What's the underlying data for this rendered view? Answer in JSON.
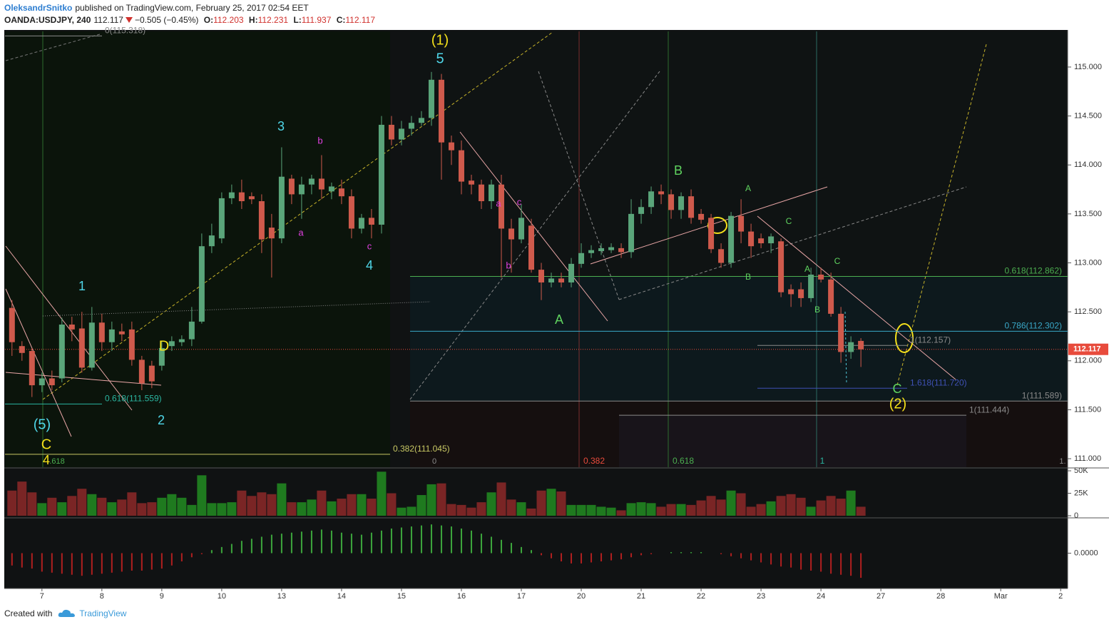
{
  "header": {
    "author": "OleksandrSnitko",
    "published": "published on TradingView.com, February 25, 2017 02:54 EET",
    "symbol": "OANDA:USDJPY, 240",
    "last": "112.117",
    "change": "−0.505 (−0.45%)",
    "ohlc": [
      {
        "key": "O:",
        "value": "112.203"
      },
      {
        "key": "H:",
        "value": "112.231"
      },
      {
        "key": "L:",
        "value": "111.937"
      },
      {
        "key": "C:",
        "value": "112.117"
      }
    ]
  },
  "footer": {
    "created": "Created with",
    "brand": "TradingView"
  },
  "chart_data": [
    {
      "type": "candlestick",
      "up_color": "#5aa57a",
      "down_color": "#cf5a4c",
      "xlim": [
        -0.7,
        105.7
      ],
      "ylim": [
        110.913,
        115.364
      ],
      "yticks": [
        {
          "value": 111,
          "label": "111.000"
        },
        {
          "value": 111.5,
          "label": "111.500"
        },
        {
          "value": 112,
          "label": "112.000"
        },
        {
          "value": 112.5,
          "label": "112.500"
        },
        {
          "value": 113,
          "label": "113.000"
        },
        {
          "value": 113.5,
          "label": "113.500"
        },
        {
          "value": 114,
          "label": "114.000"
        },
        {
          "value": 114.5,
          "label": "114.500"
        },
        {
          "value": 115,
          "label": "115.000"
        }
      ],
      "last_price": 112.117,
      "last_color": "#e84b3c",
      "open": [
        112.54,
        112.15,
        112.1,
        111.75,
        111.82,
        111.82,
        112.37,
        112.33,
        111.93,
        112.39,
        112.19,
        112.3,
        112.32,
        112.01,
        111.95,
        111.95,
        112.15,
        112.19,
        112.22,
        112.4,
        113.17,
        113.25,
        113.66,
        113.72,
        113.68,
        113.63,
        113.36,
        113.25,
        113.86,
        113.7,
        113.8,
        113.86,
        113.73,
        113.76,
        113.68,
        113.35,
        113.46,
        113.39,
        114.41,
        114.26,
        114.37,
        114.43,
        114.48,
        114.87,
        114.23,
        114.15,
        113.84,
        113.8,
        113.63,
        113.8,
        113.35,
        113.24,
        113.38,
        112.93,
        112.8,
        112.84,
        112.8,
        112.99,
        113.1,
        113.12,
        113.13,
        113.15,
        113.11,
        113.5,
        113.57,
        113.73,
        113.7,
        113.54,
        113.68,
        113.5,
        113.46,
        113.14,
        113.0,
        113.48,
        113.32,
        113.25,
        113.2,
        113.22,
        112.73,
        112.73,
        112.64,
        112.88,
        112.83,
        112.48,
        112.09,
        112.203
      ],
      "high": [
        112.62,
        112.2,
        112.13,
        111.88,
        111.9,
        112.44,
        112.45,
        112.5,
        112.55,
        112.48,
        112.4,
        112.38,
        112.4,
        112.05,
        112.0,
        112.2,
        112.25,
        112.26,
        112.55,
        113.3,
        113.4,
        113.72,
        113.8,
        113.85,
        113.72,
        113.7,
        113.5,
        114.18,
        113.9,
        113.88,
        113.9,
        114.1,
        113.82,
        113.85,
        113.75,
        113.5,
        113.55,
        114.5,
        114.5,
        114.45,
        114.5,
        114.55,
        114.95,
        114.93,
        114.3,
        114.25,
        113.9,
        113.85,
        113.85,
        113.9,
        113.45,
        113.6,
        113.45,
        113.0,
        112.9,
        112.9,
        113.05,
        113.2,
        113.18,
        113.2,
        113.2,
        113.2,
        113.65,
        113.65,
        113.78,
        113.8,
        113.75,
        113.72,
        113.75,
        113.55,
        113.5,
        113.2,
        113.52,
        113.65,
        113.4,
        113.3,
        113.3,
        113.25,
        112.78,
        112.8,
        112.95,
        112.95,
        112.9,
        112.55,
        112.25,
        112.231
      ],
      "low": [
        112.05,
        112.0,
        111.63,
        111.68,
        111.7,
        111.78,
        112.2,
        111.88,
        111.9,
        112.1,
        112.1,
        112.2,
        111.95,
        111.7,
        111.72,
        111.9,
        112.1,
        112.15,
        112.15,
        112.38,
        113.1,
        113.2,
        113.6,
        113.55,
        113.6,
        113.1,
        112.85,
        113.2,
        113.6,
        113.45,
        113.7,
        113.65,
        113.65,
        113.6,
        113.25,
        113.3,
        113.25,
        113.3,
        114.2,
        114.2,
        114.3,
        114.4,
        114.4,
        113.85,
        114.0,
        113.7,
        113.7,
        113.55,
        113.55,
        112.85,
        112.9,
        113.2,
        112.9,
        112.62,
        112.75,
        112.75,
        112.75,
        112.95,
        113.05,
        113.08,
        113.1,
        113.05,
        113.05,
        113.4,
        113.5,
        113.6,
        113.45,
        113.45,
        113.4,
        113.4,
        113.1,
        112.95,
        112.95,
        113.2,
        113.05,
        113.15,
        113.1,
        112.65,
        112.55,
        112.55,
        112.6,
        112.8,
        112.45,
        111.98,
        112.02,
        111.937
      ],
      "close": [
        112.19,
        112.08,
        111.75,
        111.82,
        111.75,
        112.37,
        112.32,
        111.93,
        112.39,
        112.19,
        112.32,
        112.27,
        112.01,
        111.77,
        111.79,
        112.13,
        112.2,
        112.22,
        112.4,
        113.17,
        113.28,
        113.66,
        113.72,
        113.63,
        113.65,
        113.24,
        113.25,
        113.88,
        113.7,
        113.8,
        113.86,
        113.75,
        113.78,
        113.68,
        113.35,
        113.46,
        113.39,
        114.41,
        114.26,
        114.37,
        114.43,
        114.48,
        114.87,
        114.23,
        114.15,
        113.83,
        113.8,
        113.63,
        113.8,
        113.35,
        113.24,
        113.46,
        112.93,
        112.8,
        112.84,
        112.8,
        112.99,
        113.1,
        113.13,
        113.15,
        113.16,
        113.11,
        113.5,
        113.57,
        113.73,
        113.7,
        113.54,
        113.68,
        113.46,
        113.44,
        113.14,
        113.0,
        113.48,
        113.32,
        113.17,
        113.2,
        113.27,
        112.7,
        112.68,
        112.64,
        112.88,
        112.83,
        112.48,
        112.09,
        112.19,
        112.117
      ],
      "levels": [
        {
          "label": "0.618(112.862)",
          "value": 112.862,
          "color": "#4caf50"
        },
        {
          "label": "0.786(112.302)",
          "value": 112.302,
          "color": "#3aa8c8"
        },
        {
          "label": "1.618(111.720)",
          "value": 111.72,
          "color": "#3f51b5"
        },
        {
          "label": "1(111.589)",
          "value": 111.589,
          "color": "#8a8a8a"
        },
        {
          "label": "1(111.444)",
          "value": 111.444,
          "color": "#8a8a8a"
        },
        {
          "label": "1(112.157)",
          "value": 112.157,
          "color": "#8a8a8a"
        },
        {
          "label": "0.382(111.045)",
          "value": 111.045,
          "color": "#c8c864"
        },
        {
          "label": "0.618(111.559)",
          "value": 111.559,
          "color": "#2bb5a0"
        },
        {
          "label": "0(115.318)",
          "value": 115.318,
          "color": "#8a8a8a"
        }
      ],
      "annotations": [
        {
          "text": "(1)",
          "color": "#f5e11b"
        },
        {
          "text": "5",
          "color": "#4fd6e8"
        },
        {
          "text": "3",
          "color": "#4fd6e8"
        },
        {
          "text": "b",
          "color": "#e040e0"
        },
        {
          "text": "a",
          "color": "#e040e0"
        },
        {
          "text": "4",
          "color": "#4fd6e8"
        },
        {
          "text": "c",
          "color": "#e040e0"
        },
        {
          "text": "1",
          "color": "#4fd6e8"
        },
        {
          "text": "2",
          "color": "#4fd6e8"
        },
        {
          "text": "(5)",
          "color": "#4fd6e8"
        },
        {
          "text": "C",
          "color": "#f5e11b"
        },
        {
          "text": "4",
          "color": "#f5e11b"
        },
        {
          "text": "D",
          "color": "#f5e11b"
        },
        {
          "text": "A",
          "color": "#5fd35f"
        },
        {
          "text": "a",
          "color": "#e040e0"
        },
        {
          "text": "c",
          "color": "#e040e0"
        },
        {
          "text": "b",
          "color": "#e040e0"
        },
        {
          "text": "B",
          "color": "#5fd35f"
        },
        {
          "text": "A",
          "color": "#5fd35f"
        },
        {
          "text": "C",
          "color": "#5fd35f"
        },
        {
          "text": "B",
          "color": "#5fd35f"
        },
        {
          "text": "A",
          "color": "#5fd35f"
        },
        {
          "text": "C",
          "color": "#5fd35f"
        },
        {
          "text": "B",
          "color": "#5fd35f"
        },
        {
          "text": "C",
          "color": "#5fd35f"
        },
        {
          "text": "(2)",
          "color": "#f5e11b"
        },
        {
          "text": "0",
          "color": "#8a8a8a"
        },
        {
          "text": "0.382",
          "color": "#e84b3c"
        },
        {
          "text": "0.618",
          "color": "#4caf50"
        },
        {
          "text": "1",
          "color": "#2bb5a0"
        },
        {
          "text": "1.",
          "color": "#8a8a8a"
        },
        {
          "text": ".618",
          "color": "#4caf50"
        }
      ]
    },
    {
      "type": "bar",
      "up_color": "#1f7a1f",
      "down_color": "#7a2525",
      "ylim": [
        0,
        52400
      ],
      "yticks": [
        {
          "value": 50000,
          "label": "50K"
        },
        {
          "value": 25000,
          "label": "25K"
        },
        0
      ],
      "values": [
        28000,
        38000,
        26000,
        14000,
        20000,
        15000,
        22000,
        30000,
        24000,
        20000,
        15000,
        18000,
        26000,
        14000,
        15000,
        20000,
        24000,
        20000,
        12000,
        45000,
        14000,
        14000,
        15000,
        28000,
        22000,
        26000,
        24000,
        36000,
        15000,
        15000,
        18000,
        28000,
        16000,
        19000,
        24000,
        24000,
        19000,
        49000,
        25000,
        9000,
        10000,
        23000,
        35000,
        36000,
        13000,
        12000,
        9000,
        15000,
        26000,
        37000,
        18000,
        15000,
        8000,
        28000,
        30000,
        27000,
        12000,
        12000,
        12000,
        10000,
        9000,
        6000,
        14000,
        15000,
        14000,
        10000,
        13000,
        13000,
        12000,
        17000,
        22000,
        18000,
        28000,
        25000,
        10000,
        13000,
        16000,
        22000,
        24000,
        20000,
        10000,
        17000,
        22000,
        19000,
        28000,
        10000
      ]
    },
    {
      "type": "bar",
      "up_color": "#3ca63c",
      "down_color": "#b01f1f",
      "ylim": [
        -0.33,
        0.33
      ],
      "yticks": [
        {
          "value": 0,
          "label": "0.0000"
        }
      ],
      "xticks": [
        {
          "value": 3,
          "label": "7"
        },
        {
          "value": 9,
          "label": "8"
        },
        {
          "value": 15,
          "label": "9"
        },
        {
          "value": 21,
          "label": "10"
        },
        {
          "value": 27,
          "label": "13"
        },
        {
          "value": 33,
          "label": "14"
        },
        {
          "value": 39,
          "label": "15"
        },
        {
          "value": 45,
          "label": "16"
        },
        {
          "value": 51,
          "label": "17"
        },
        {
          "value": 57,
          "label": "20"
        },
        {
          "value": 63,
          "label": "21"
        },
        {
          "value": 69,
          "label": "22"
        },
        {
          "value": 75,
          "label": "23"
        },
        {
          "value": 81,
          "label": "24"
        },
        {
          "value": 87,
          "label": "27"
        },
        {
          "value": 93,
          "label": "28"
        },
        {
          "value": 99,
          "label": "Mar"
        },
        {
          "value": 105,
          "label": "2"
        }
      ],
      "values": [
        -0.12,
        -0.14,
        -0.15,
        -0.18,
        -0.19,
        -0.2,
        -0.21,
        -0.22,
        -0.21,
        -0.2,
        -0.19,
        -0.18,
        -0.17,
        -0.17,
        -0.16,
        -0.15,
        -0.12,
        -0.08,
        -0.04,
        -0.01,
        0.03,
        0.06,
        0.09,
        0.12,
        0.14,
        0.16,
        0.18,
        0.19,
        0.2,
        0.21,
        0.22,
        0.23,
        0.22,
        0.2,
        0.19,
        0.18,
        0.2,
        0.22,
        0.24,
        0.25,
        0.26,
        0.27,
        0.28,
        0.27,
        0.26,
        0.24,
        0.22,
        0.19,
        0.16,
        0.13,
        0.1,
        0.06,
        0.03,
        -0.02,
        -0.05,
        -0.08,
        -0.1,
        -0.1,
        -0.09,
        -0.08,
        -0.07,
        -0.06,
        -0.04,
        -0.02,
        -0.01,
        0.0,
        0.01,
        0.01,
        0.01,
        0.01,
        0.0,
        -0.01,
        -0.03,
        -0.05,
        -0.07,
        -0.09,
        -0.11,
        -0.13,
        -0.14,
        -0.16,
        -0.17,
        -0.18,
        -0.2,
        -0.21,
        -0.22,
        -0.24
      ]
    }
  ]
}
